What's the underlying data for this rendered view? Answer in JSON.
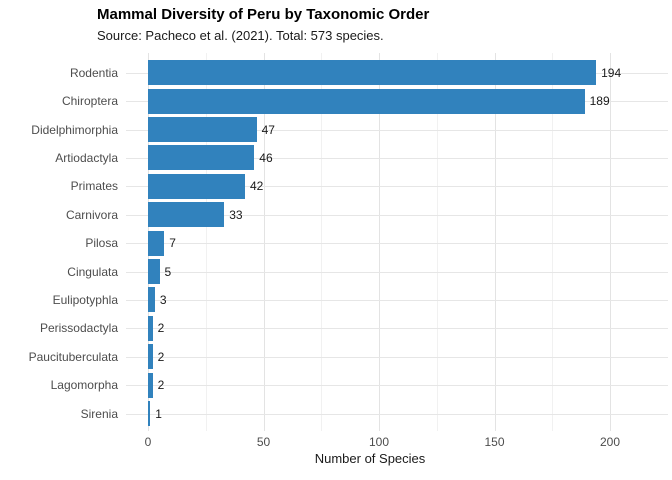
{
  "title": "Mammal Diversity of Peru by Taxonomic Order",
  "subtitle": "Source: Pacheco et al. (2021). Total: 573 species.",
  "chart_data": {
    "type": "bar",
    "orientation": "horizontal",
    "title": "Mammal Diversity of Peru by Taxonomic Order",
    "subtitle": "Source: Pacheco et al. (2021). Total: 573 species.",
    "categories": [
      "Rodentia",
      "Chiroptera",
      "Didelphimorphia",
      "Artiodactyla",
      "Primates",
      "Carnivora",
      "Pilosa",
      "Cingulata",
      "Eulipotyphla",
      "Perissodactyla",
      "Paucituberculata",
      "Lagomorpha",
      "Sirenia"
    ],
    "values": [
      194,
      189,
      47,
      46,
      42,
      33,
      7,
      5,
      3,
      2,
      2,
      2,
      1
    ],
    "value_labels": [
      "194",
      "189",
      "47",
      "46",
      "42",
      "33",
      "7",
      "5",
      "3",
      "2",
      "2",
      "2",
      "1"
    ],
    "xlabel": "Number of Species",
    "ylabel": "",
    "x_major_ticks": [
      0,
      50,
      100,
      150,
      200
    ],
    "x_minor_ticks": [
      25,
      75,
      125,
      175,
      225
    ],
    "xlim": [
      0,
      223
    ],
    "total_species": 573,
    "bar_color": "#3182bd",
    "grid": "on",
    "legend": "none"
  }
}
